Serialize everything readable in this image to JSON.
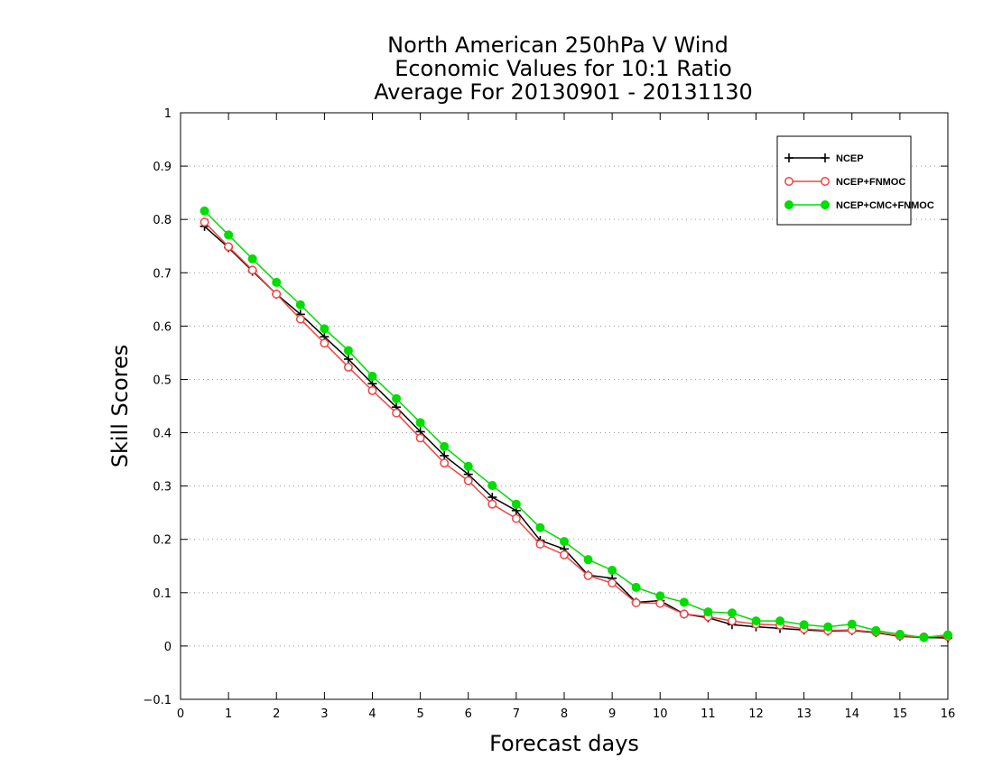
{
  "chart_data": {
    "type": "line",
    "title": [
      "North American 250hPa V Wind",
      "Economic Values for 10:1 Ratio",
      "Average For 20130901 - 20131130"
    ],
    "xlabel": "Forecast days",
    "ylabel": "Skill Scores",
    "xlim": [
      0,
      16
    ],
    "ylim": [
      -0.1,
      1
    ],
    "xticks": [
      "0",
      "1",
      "2",
      "3",
      "4",
      "5",
      "6",
      "7",
      "8",
      "9",
      "10",
      "11",
      "12",
      "13",
      "14",
      "15",
      "16"
    ],
    "yticks": [
      "−0.1",
      "0",
      "0.1",
      "0.2",
      "0.3",
      "0.4",
      "0.5",
      "0.6",
      "0.7",
      "0.8",
      "0.9",
      "1"
    ],
    "grid": true,
    "legend_position": "top-right",
    "x": [
      0.5,
      1,
      1.5,
      2,
      2.5,
      3,
      3.5,
      4,
      4.5,
      5,
      5.5,
      6,
      6.5,
      7,
      7.5,
      8,
      8.5,
      9,
      9.5,
      10,
      10.5,
      11,
      11.5,
      12,
      12.5,
      13,
      13.5,
      14,
      14.5,
      15,
      15.5,
      16
    ],
    "series": [
      {
        "name": "NCEP",
        "color": "#000000",
        "marker": "plus",
        "values": [
          0.787,
          0.747,
          0.703,
          0.66,
          0.622,
          0.58,
          0.538,
          0.492,
          0.448,
          0.402,
          0.357,
          0.322,
          0.279,
          0.254,
          0.198,
          0.182,
          0.133,
          0.127,
          0.082,
          0.085,
          0.06,
          0.053,
          0.04,
          0.036,
          0.033,
          0.03,
          0.028,
          0.029,
          0.025,
          0.018,
          0.016,
          0.015
        ]
      },
      {
        "name": "NCEP+FNMOC",
        "color": "#ee4444",
        "marker": "open-circle",
        "values": [
          0.795,
          0.749,
          0.705,
          0.66,
          0.613,
          0.568,
          0.523,
          0.479,
          0.437,
          0.39,
          0.343,
          0.31,
          0.266,
          0.239,
          0.191,
          0.171,
          0.132,
          0.118,
          0.081,
          0.08,
          0.06,
          0.055,
          0.047,
          0.041,
          0.039,
          0.032,
          0.029,
          0.03,
          0.026,
          0.019,
          0.017,
          0.018
        ]
      },
      {
        "name": "NCEP+CMC+FNMOC",
        "color": "#00dd00",
        "marker": "filled-circle",
        "values": [
          0.816,
          0.771,
          0.726,
          0.682,
          0.64,
          0.595,
          0.554,
          0.506,
          0.464,
          0.419,
          0.374,
          0.337,
          0.301,
          0.266,
          0.222,
          0.196,
          0.162,
          0.142,
          0.11,
          0.094,
          0.082,
          0.064,
          0.062,
          0.047,
          0.047,
          0.04,
          0.036,
          0.041,
          0.029,
          0.022,
          0.016,
          0.021
        ]
      }
    ]
  }
}
